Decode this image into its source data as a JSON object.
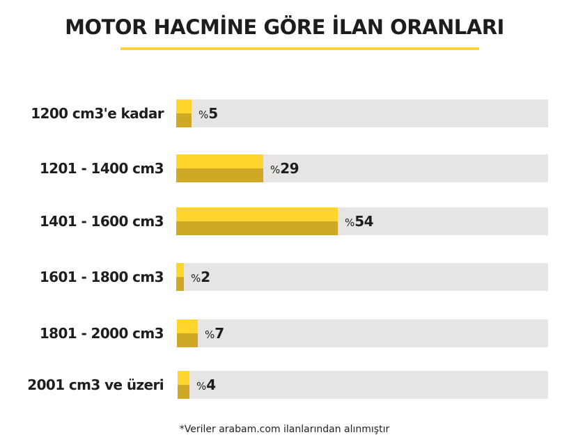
{
  "chart_data": {
    "type": "bar",
    "orientation": "horizontal",
    "title": "MOTOR HACMİNE GÖRE İLAN ORANLARI",
    "categories": [
      "1200 cm3'e kadar",
      "1201 - 1400 cm3",
      "1401 - 1600 cm3",
      "1601 - 1800 cm3",
      "1801 - 2000 cm3",
      "2001 cm3 ve üzeri"
    ],
    "values": [
      5,
      29,
      54,
      2,
      7,
      4
    ],
    "value_prefix": "%",
    "xlim": [
      0,
      120
    ],
    "grid": false,
    "legend": "none",
    "footnote": "*Veriler arabam.com ilanlarından alınmıştır"
  },
  "colors": {
    "bar_top": "#ffd52e",
    "bar_bottom": "#cfa826",
    "track": "#e6e5e4",
    "title_underline": "#ffd52e",
    "text": "#1d1d1d"
  }
}
